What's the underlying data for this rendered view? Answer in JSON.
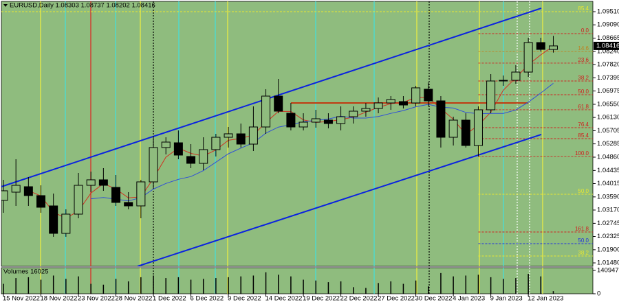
{
  "chart_data": {
    "type": "candlestick",
    "title": "EURUSD,Daily  1.08303 1.08737 1.08202 1.08416",
    "categories": [
      "15 Nov 2022",
      null,
      null,
      "18 Nov 2022",
      null,
      null,
      "23 Nov 2022",
      null,
      null,
      "28 Nov 2022",
      null,
      null,
      "1 Dec 2022",
      null,
      null,
      "6 Dec 2022",
      null,
      null,
      "9 Dec 2022",
      null,
      null,
      "14 Dec 2022",
      null,
      null,
      "19 Dec 2022",
      null,
      null,
      "22 Dec 2022",
      null,
      null,
      "27 Dec 2022",
      null,
      null,
      "30 Dec 2022",
      null,
      null,
      "4 Jan 2023",
      null,
      null,
      "9 Jan 2023",
      null,
      null,
      "12 Jan 2023",
      null,
      null
    ],
    "open": [
      1.03478,
      1.03741,
      1.03916,
      1.03631,
      1.03302,
      1.02424,
      1.03039,
      1.0396,
      1.04136,
      1.03894,
      1.03412,
      1.03302,
      1.0407,
      1.05167,
      1.0532,
      1.04882,
      1.04662,
      1.05101,
      1.05496,
      1.05606,
      1.05277,
      1.05825,
      1.06812,
      1.06264,
      1.05825,
      1.05979,
      1.06044,
      1.05935,
      1.06154,
      1.0633,
      1.06417,
      1.06593,
      1.06637,
      1.06593,
      1.07032,
      1.06659,
      1.05496,
      1.06044,
      1.05233,
      1.06374,
      1.07295,
      1.07317,
      1.0758,
      1.08524,
      1.08303
    ],
    "high": [
      1.04136,
      1.04794,
      1.04223,
      1.0396,
      1.03697,
      1.03192,
      1.04355,
      1.04399,
      1.04509,
      1.04289,
      1.03741,
      1.04136,
      1.0554,
      1.05496,
      1.05715,
      1.05277,
      1.05496,
      1.05606,
      1.05825,
      1.05935,
      1.06483,
      1.07032,
      1.07361,
      1.06593,
      1.06264,
      1.06374,
      1.06264,
      1.06483,
      1.06483,
      1.06593,
      1.06769,
      1.06812,
      1.06812,
      1.07141,
      1.07251,
      1.06812,
      1.06154,
      1.06264,
      1.06483,
      1.07514,
      1.07471,
      1.078,
      1.08677,
      1.08677,
      1.08737
    ],
    "low": [
      1.03083,
      1.03302,
      1.03302,
      1.03083,
      1.02315,
      1.02315,
      1.02907,
      1.03741,
      1.03785,
      1.03302,
      1.03192,
      1.02907,
      1.0385,
      1.04947,
      1.04794,
      1.04509,
      1.04443,
      1.04882,
      1.05167,
      1.05167,
      1.05057,
      1.05606,
      1.06264,
      1.05715,
      1.05715,
      1.05803,
      1.05781,
      1.05715,
      1.05935,
      1.06154,
      1.06264,
      1.06374,
      1.06417,
      1.06483,
      1.06483,
      1.05167,
      1.05233,
      1.05167,
      1.04882,
      1.06264,
      1.07141,
      1.07207,
      1.07427,
      1.08238,
      1.08202
    ],
    "close": [
      1.03785,
      1.0396,
      1.03631,
      1.03258,
      1.02424,
      1.03039,
      1.0396,
      1.04136,
      1.0396,
      1.03412,
      1.03302,
      1.0407,
      1.05167,
      1.05342,
      1.04926,
      1.04662,
      1.05101,
      1.05496,
      1.05606,
      1.05277,
      1.05825,
      1.06812,
      1.0633,
      1.05825,
      1.05979,
      1.06088,
      1.05935,
      1.06154,
      1.0633,
      1.06417,
      1.06593,
      1.06703,
      1.06527,
      1.07076,
      1.06659,
      1.05496,
      1.06044,
      1.05233,
      1.06374,
      1.07295,
      1.07317,
      1.0758,
      1.08524,
      1.08304,
      1.08416
    ],
    "bull_color": "#8fbc7e",
    "bear_color": "#000000",
    "series": [
      {
        "color": "#d03020",
        "values": [
          null,
          null,
          1.0379,
          1.0362,
          1.031,
          1.0291,
          1.0314,
          1.0371,
          1.0402,
          1.0384,
          1.0356,
          1.0359,
          1.0418,
          1.0486,
          1.0515,
          1.0498,
          1.049,
          1.0509,
          1.054,
          1.0546,
          1.0557,
          1.0597,
          1.0632,
          1.0632,
          1.0605,
          1.0597,
          1.06,
          1.0606,
          1.0614,
          1.063,
          1.0645,
          1.0657,
          1.0661,
          1.0677,
          1.0676,
          1.0641,
          1.0607,
          1.0559,
          1.0588,
          1.063,
          1.07,
          1.074,
          1.0781,
          1.0813,
          1.0841
        ]
      },
      {
        "color": "#2f4fd8",
        "values": [
          null,
          null,
          null,
          null,
          null,
          null,
          null,
          1.0353,
          1.0357,
          1.0352,
          1.0346,
          1.0357,
          1.0384,
          1.0402,
          1.0415,
          1.0424,
          1.0443,
          1.047,
          1.0497,
          1.0515,
          1.0532,
          1.0563,
          1.0582,
          1.059,
          1.0599,
          1.0604,
          1.0608,
          1.0617,
          1.0611,
          1.0611,
          1.0616,
          1.0626,
          1.0635,
          1.0647,
          1.0655,
          1.0646,
          1.0643,
          1.0629,
          1.0625,
          1.0626,
          1.0626,
          1.0637,
          1.0662,
          1.0691,
          1.0722
        ]
      }
    ],
    "lines": [
      {
        "color": "#0a22e0",
        "x": [
          -0.17,
          43.04
        ],
        "values": [
          1.03916,
          1.09621
        ]
      },
      {
        "color": "#0a22e0",
        "x": [
          10.73,
          43.04
        ],
        "values": [
          1.01371,
          1.05584
        ]
      },
      {
        "color": "#c03a10",
        "x": [
          23,
          42
        ],
        "values": [
          1.06593,
          1.06593
        ]
      }
    ],
    "levels": [
      {
        "label": "85.4",
        "value": 1.09511,
        "color": "#e8e830"
      },
      {
        "label": "0.0",
        "value": 1.08809,
        "color": "#d02020"
      },
      {
        "label": "14.6",
        "value": 1.08238,
        "color": "#c08020"
      },
      {
        "label": "23.6",
        "value": 1.07866,
        "color": "#d02020"
      },
      {
        "label": "38.2",
        "value": 1.07295,
        "color": "#d02020"
      },
      {
        "label": "50.0",
        "value": 1.06856,
        "color": "#d02020"
      },
      {
        "label": "61.8",
        "value": 1.06374,
        "color": "#d02020"
      },
      {
        "label": "76.4",
        "value": 1.05803,
        "color": "#d02020"
      },
      {
        "label": "85.4",
        "value": 1.05452,
        "color": "#d02020"
      },
      {
        "label": "100.0",
        "value": 1.04882,
        "color": "#d02020"
      },
      {
        "label": "50.0",
        "value": 1.03675,
        "color": "#e8e830"
      },
      {
        "label": "161.8",
        "value": 1.02468,
        "color": "#d02020"
      },
      {
        "label": "50.0",
        "value": 1.02095,
        "color": "#2030e0"
      },
      {
        "label": "38.2",
        "value": 1.017,
        "color": "#e8e830"
      }
    ],
    "ylim": [
      1.01371,
      1.0984
    ],
    "yticks": [
      {
        "value": 1.0951,
        "label": "1.09510"
      },
      {
        "value": 1.0909,
        "label": "1.09090"
      },
      1.08665,
      {
        "value": 1.0824,
        "label": "1.08240"
      },
      {
        "value": 1.0782,
        "label": "1.07820"
      },
      1.07395,
      1.06975,
      {
        "value": 1.0655,
        "label": "1.06550"
      },
      {
        "value": 1.0613,
        "label": "1.06130"
      },
      1.05705,
      1.05285,
      {
        "value": 1.0486,
        "label": "1.04860"
      },
      1.04435,
      1.04015,
      {
        "value": 1.0359,
        "label": "1.03590"
      },
      {
        "value": 1.0317,
        "label": "1.03170"
      },
      1.02745,
      1.02325,
      {
        "value": 1.019,
        "label": "1.01900"
      },
      {
        "value": 1.0148,
        "label": "1.01480"
      }
    ],
    "volume_title": "Volumes 16025",
    "volumes": [
      60000,
      95000,
      100000,
      85000,
      110000,
      90000,
      105000,
      60000,
      55000,
      90000,
      75000,
      100000,
      110000,
      95000,
      100000,
      85000,
      90000,
      95000,
      100000,
      105000,
      110000,
      130000,
      115000,
      105000,
      85000,
      80000,
      70000,
      75000,
      40000,
      35000,
      65000,
      75000,
      60000,
      80000,
      45000,
      125000,
      105000,
      110000,
      115000,
      100000,
      90000,
      95000,
      120000,
      105000,
      16025
    ],
    "volume_lim": [
      0,
      140947
    ],
    "volume_ticks": [
      140947,
      0
    ]
  }
}
